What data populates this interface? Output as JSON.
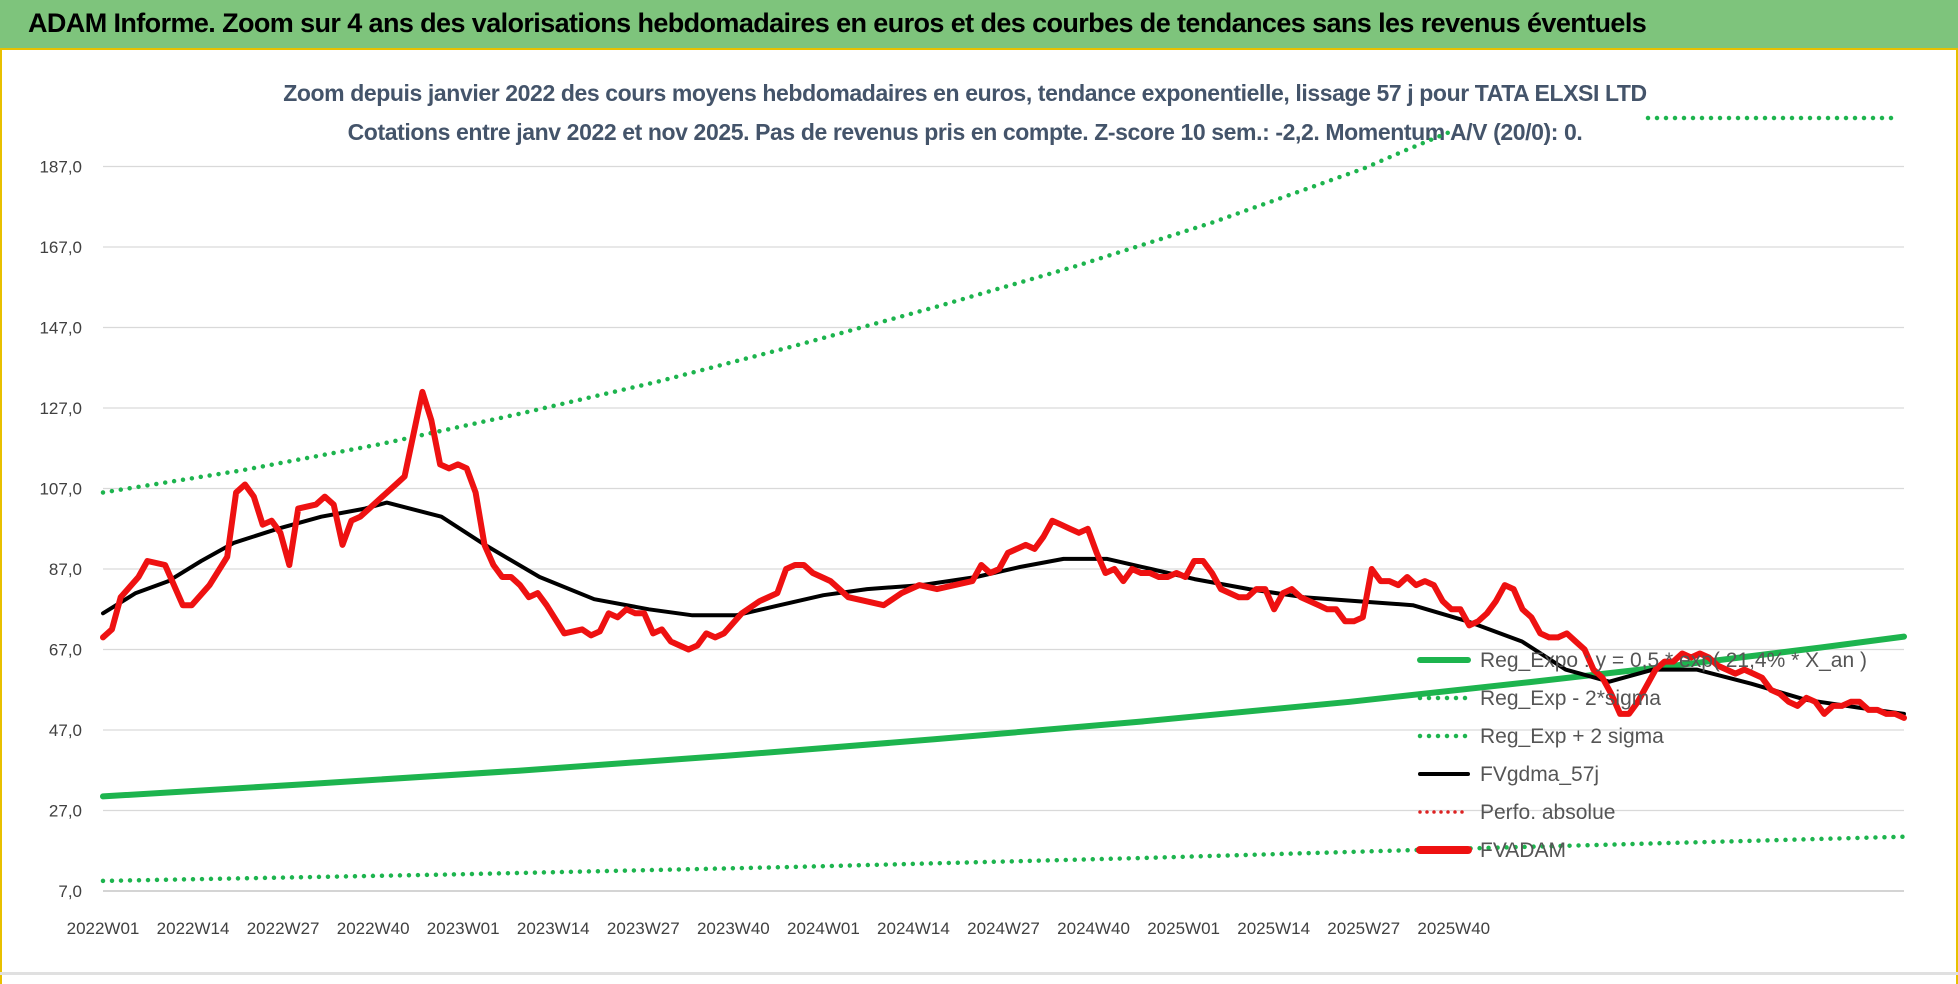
{
  "banner": {
    "title": "ADAM Informe. Zoom sur 4 ans des valorisations hebdomadaires en euros et des courbes de tendances sans les revenus éventuels"
  },
  "chart_data": {
    "type": "line",
    "title": "Zoom depuis janvier 2022 des cours moyens hebdomadaires en euros, tendance exponentielle, lissage 57 j pour TATA  ELXSI LTD",
    "subtitle": "Cotations entre janv 2022 et nov 2025. Pas de revenus pris en compte. Z-score 10 sem.: -2,2. Momentum A/V (20/0): 0.",
    "xlabel": "",
    "ylabel": "",
    "ylim": [
      7,
      195
    ],
    "y_ticks": [
      "187,0",
      "167,0",
      "147,0",
      "127,0",
      "107,0",
      "87,0",
      "67,0",
      "47,0",
      "27,0",
      "7,0"
    ],
    "x_ticks": [
      "2022W01",
      "2022W14",
      "2022W27",
      "2022W40",
      "2023W01",
      "2023W14",
      "2023W27",
      "2023W40",
      "2024W01",
      "2024W14",
      "2024W27",
      "2024W40",
      "2025W01",
      "2025W14",
      "2025W27",
      "2025W40"
    ],
    "grid": true,
    "legend_position": "right",
    "colors": {
      "trend": "#1db44e",
      "sma": "#000000",
      "price": "#ee1111",
      "perfo": "#dd2222"
    },
    "series": [
      {
        "name": "Reg_Expo : y = 0,5 * exp( 21,4% *  X_an )",
        "style": "solid-green",
        "points": [
          [
            0,
            30.5
          ],
          [
            30,
            33.6
          ],
          [
            60,
            36.9
          ],
          [
            90,
            40.6
          ],
          [
            120,
            44.7
          ],
          [
            150,
            49.1
          ],
          [
            180,
            54.0
          ],
          [
            206,
            58.9
          ],
          [
            225,
            62.6
          ],
          [
            248,
            67.5
          ],
          [
            260,
            70.2
          ]
        ]
      },
      {
        "name": "Reg_Exp - 2*sigma",
        "style": "dotted-green",
        "points": [
          [
            0,
            9.5
          ],
          [
            50,
            11.1
          ],
          [
            100,
            13.0
          ],
          [
            150,
            15.2
          ],
          [
            200,
            17.7
          ],
          [
            260,
            20.5
          ]
        ]
      },
      {
        "name": "Reg_Exp + 2 sigma",
        "style": "dotted-green",
        "points": [
          [
            0,
            106
          ],
          [
            20,
            111.5
          ],
          [
            40,
            118
          ],
          [
            60,
            125.5
          ],
          [
            80,
            133.5
          ],
          [
            100,
            142.5
          ],
          [
            120,
            152.0
          ],
          [
            140,
            162.0
          ],
          [
            160,
            173.0
          ],
          [
            182,
            186.5
          ],
          [
            188,
            191
          ],
          [
            195,
            196
          ]
        ]
      },
      {
        "name": "FVgdma_57j",
        "style": "solid-black",
        "points": [
          [
            0,
            76
          ],
          [
            6,
            81
          ],
          [
            12,
            84
          ],
          [
            18,
            89
          ],
          [
            24,
            93.5
          ],
          [
            32,
            97
          ],
          [
            40,
            100
          ],
          [
            48,
            102
          ],
          [
            52,
            103.5
          ],
          [
            62,
            100
          ],
          [
            70,
            93
          ],
          [
            80,
            85
          ],
          [
            90,
            79.5
          ],
          [
            100,
            77
          ],
          [
            108,
            75.5
          ],
          [
            116,
            75.5
          ],
          [
            124,
            78
          ],
          [
            132,
            80.5
          ],
          [
            140,
            82
          ],
          [
            150,
            83
          ],
          [
            160,
            85
          ],
          [
            168,
            87.5
          ],
          [
            176,
            89.5
          ],
          [
            184,
            89.5
          ],
          [
            192,
            87
          ],
          [
            200,
            84.5
          ],
          [
            210,
            82
          ],
          [
            220,
            80
          ],
          [
            230,
            79
          ],
          [
            240,
            78
          ],
          [
            250,
            74
          ],
          [
            260,
            69
          ],
          [
            268,
            62
          ],
          [
            276,
            59
          ],
          [
            284,
            62
          ],
          [
            292,
            62
          ],
          [
            302,
            58.5
          ],
          [
            312,
            54.5
          ],
          [
            322,
            52.5
          ],
          [
            330,
            51
          ]
        ]
      },
      {
        "name": "Perfo. absolue",
        "style": "dotted-red",
        "points": []
      },
      {
        "name": "FVADAM",
        "style": "solid-red",
        "points": [
          [
            0,
            70
          ],
          [
            1,
            72
          ],
          [
            2,
            80
          ],
          [
            4,
            85
          ],
          [
            5,
            89
          ],
          [
            7,
            88
          ],
          [
            9,
            78
          ],
          [
            10,
            78
          ],
          [
            12,
            83
          ],
          [
            14,
            90
          ],
          [
            15,
            106
          ],
          [
            16,
            108
          ],
          [
            17,
            105
          ],
          [
            18,
            98
          ],
          [
            19,
            99
          ],
          [
            20,
            96
          ],
          [
            21,
            88
          ],
          [
            22,
            102
          ],
          [
            24,
            103
          ],
          [
            25,
            105
          ],
          [
            26,
            103
          ],
          [
            27,
            93
          ],
          [
            28,
            99
          ],
          [
            29,
            100
          ],
          [
            31,
            104
          ],
          [
            33,
            108
          ],
          [
            34,
            110
          ],
          [
            36,
            131
          ],
          [
            37,
            124
          ],
          [
            38,
            113
          ],
          [
            39,
            112
          ],
          [
            40,
            113
          ],
          [
            41,
            112
          ],
          [
            42,
            106
          ],
          [
            43,
            93
          ],
          [
            44,
            88
          ],
          [
            45,
            85
          ],
          [
            46,
            85
          ],
          [
            47,
            83
          ],
          [
            48,
            80
          ],
          [
            49,
            81
          ],
          [
            50,
            78
          ],
          [
            52,
            71
          ],
          [
            53,
            71.5
          ],
          [
            54,
            72
          ],
          [
            55,
            70.5
          ],
          [
            56,
            71.5
          ],
          [
            57,
            76
          ],
          [
            58,
            75
          ],
          [
            59,
            77
          ],
          [
            60,
            76
          ],
          [
            61,
            76
          ],
          [
            62,
            71
          ],
          [
            63,
            72
          ],
          [
            64,
            69
          ],
          [
            66,
            67
          ],
          [
            67,
            68
          ],
          [
            68,
            71
          ],
          [
            69,
            70
          ],
          [
            70,
            71
          ],
          [
            72,
            76
          ],
          [
            74,
            79
          ],
          [
            76,
            81
          ],
          [
            77,
            87
          ],
          [
            78,
            88
          ],
          [
            79,
            88
          ],
          [
            80,
            86
          ],
          [
            81,
            85
          ],
          [
            82,
            84
          ],
          [
            83,
            82
          ],
          [
            84,
            80
          ],
          [
            86,
            79
          ],
          [
            88,
            78
          ],
          [
            90,
            81
          ],
          [
            92,
            83
          ],
          [
            94,
            82
          ],
          [
            96,
            83
          ],
          [
            98,
            84
          ],
          [
            99,
            88
          ],
          [
            100,
            86
          ],
          [
            101,
            87
          ],
          [
            102,
            91
          ],
          [
            103,
            92
          ],
          [
            104,
            93
          ],
          [
            105,
            92
          ],
          [
            106,
            95
          ],
          [
            107,
            99
          ],
          [
            108,
            98
          ],
          [
            109,
            97
          ],
          [
            110,
            96
          ],
          [
            111,
            97
          ],
          [
            112,
            91
          ],
          [
            113,
            86
          ],
          [
            114,
            87
          ],
          [
            115,
            84
          ],
          [
            116,
            87
          ],
          [
            117,
            86
          ],
          [
            118,
            86
          ],
          [
            119,
            85
          ],
          [
            120,
            85
          ],
          [
            121,
            86
          ],
          [
            122,
            85
          ],
          [
            123,
            89
          ],
          [
            124,
            89
          ],
          [
            125,
            86
          ],
          [
            126,
            82
          ],
          [
            127,
            81
          ],
          [
            128,
            80
          ],
          [
            129,
            80
          ],
          [
            130,
            82
          ],
          [
            131,
            82
          ],
          [
            132,
            77
          ],
          [
            133,
            81
          ],
          [
            134,
            82
          ],
          [
            135,
            80
          ],
          [
            136,
            79
          ],
          [
            137,
            78
          ],
          [
            138,
            77
          ],
          [
            139,
            77
          ],
          [
            140,
            74
          ],
          [
            141,
            74
          ],
          [
            142,
            75
          ],
          [
            143,
            87
          ],
          [
            144,
            84
          ],
          [
            145,
            84
          ],
          [
            146,
            83
          ],
          [
            147,
            85
          ],
          [
            148,
            83
          ],
          [
            149,
            84
          ],
          [
            150,
            83
          ],
          [
            151,
            79
          ],
          [
            152,
            77
          ],
          [
            153,
            77
          ],
          [
            154,
            73
          ],
          [
            155,
            74
          ],
          [
            156,
            76
          ],
          [
            157,
            79
          ],
          [
            158,
            83
          ],
          [
            159,
            82
          ],
          [
            160,
            77
          ],
          [
            161,
            75
          ],
          [
            162,
            71
          ],
          [
            163,
            70
          ],
          [
            164,
            70
          ],
          [
            165,
            71
          ],
          [
            166,
            69
          ],
          [
            167,
            67
          ],
          [
            168,
            62
          ],
          [
            169,
            60
          ],
          [
            170,
            56
          ],
          [
            171,
            51
          ],
          [
            172,
            51
          ],
          [
            173,
            54
          ],
          [
            174,
            58
          ],
          [
            175,
            62
          ],
          [
            176,
            64
          ],
          [
            177,
            64
          ],
          [
            178,
            66
          ],
          [
            179,
            65
          ],
          [
            180,
            66
          ],
          [
            181,
            65
          ],
          [
            182,
            63
          ],
          [
            183,
            62
          ],
          [
            184,
            61
          ],
          [
            185,
            62
          ],
          [
            186,
            61
          ],
          [
            187,
            60
          ],
          [
            188,
            57
          ],
          [
            189,
            56
          ],
          [
            190,
            54
          ],
          [
            191,
            53
          ],
          [
            192,
            55
          ],
          [
            193,
            54
          ],
          [
            194,
            51
          ],
          [
            195,
            53
          ],
          [
            196,
            53
          ],
          [
            197,
            54
          ],
          [
            198,
            54
          ],
          [
            199,
            52
          ],
          [
            200,
            52
          ],
          [
            201,
            51
          ],
          [
            202,
            51
          ],
          [
            203,
            50
          ]
        ]
      }
    ]
  }
}
